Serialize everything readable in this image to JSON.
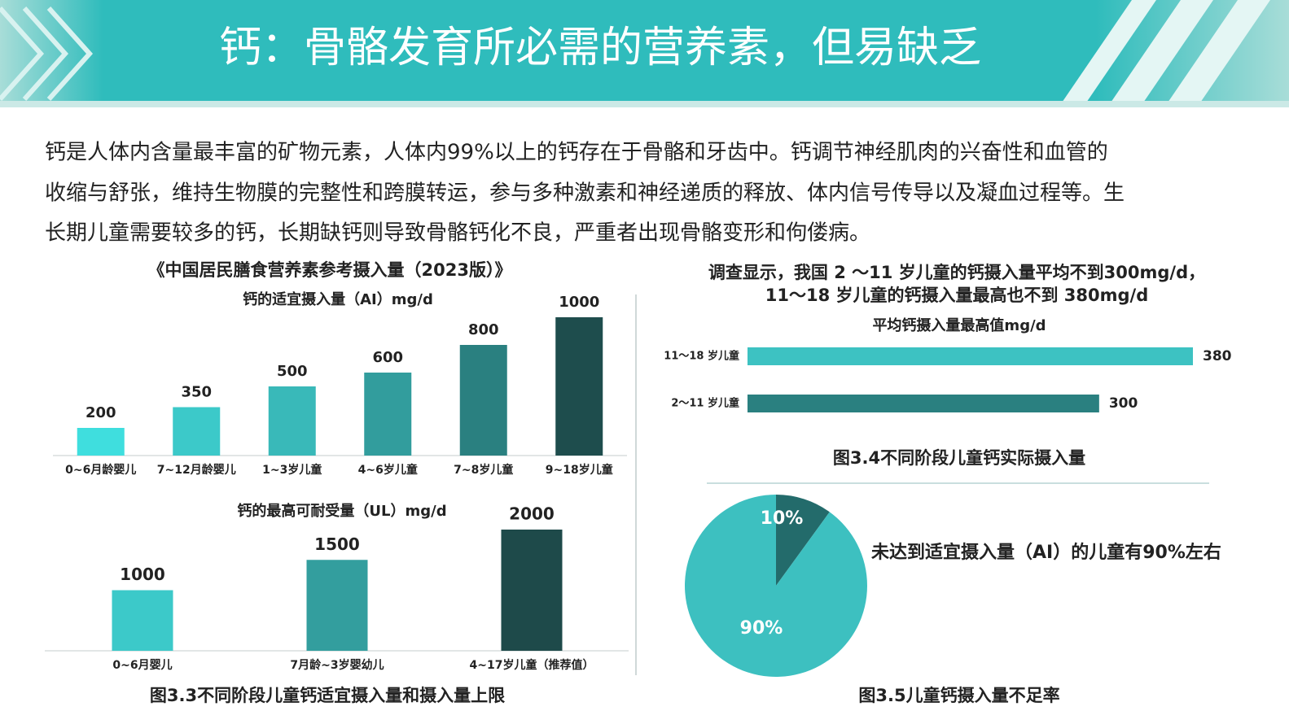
{
  "header": {
    "title": "钙：骨骼发育所必需的营养素，但易缺乏"
  },
  "intro": [
    "钙是人体内含量最丰富的矿物元素，人体内99%以上的钙存在于骨骼和牙齿中。钙调节神经肌肉的兴奋性和血管的",
    "收缩与舒张，维持生物膜的完整性和跨膜转运，参与多种激素和神经递质的释放、体内信号传导以及凝血过程等。生",
    "长期儿童需要较多的钙，长期缺钙则导致骨骼钙化不良，严重者出现骨骼变形和佝偻病。"
  ],
  "left_panel": {
    "title": "《中国居民膳食营养素参考摄入量（2023版）》",
    "caption": "图3.3不同阶段儿童钙适宜摄入量和摄入量上限"
  },
  "right_panel": {
    "title": [
      "调查显示，我国 2 ～11 岁儿童的钙摄入量平均不到300mg/d，",
      "11～18 岁儿童的钙摄入量最高也不到 380mg/d"
    ],
    "caption_top": "图3.4不同阶段儿童钙实际摄入量",
    "caption_bottom": "图3.5儿童钙摄入量不足率"
  },
  "chart_data": [
    {
      "type": "bar",
      "title": "钙的适宜摄入量（AI）mg/d",
      "categories": [
        "0~6月龄婴儿",
        "7~12月龄婴儿",
        "1~3岁儿童",
        "4~6岁儿童",
        "7~8岁儿童",
        "9~18岁儿童"
      ],
      "values": [
        200,
        350,
        500,
        600,
        800,
        1000
      ],
      "colors": [
        "#3fdede",
        "#3cc9c9",
        "#39b9b9",
        "#329d9d",
        "#2a8080",
        "#1e4d4d"
      ]
    },
    {
      "type": "bar",
      "title": "钙的最高可耐受量（UL）mg/d",
      "categories": [
        "0~6月婴儿",
        "7月龄~3岁婴幼儿",
        "4~17岁儿童（推荐值）"
      ],
      "values": [
        1000,
        1500,
        2000
      ],
      "colors": [
        "#3cc9c9",
        "#339e9e",
        "#1e4a4a"
      ]
    },
    {
      "type": "barh",
      "title": "平均钙摄入量最高值mg/d",
      "categories": [
        "11～18 岁儿童",
        "2～11 岁儿童"
      ],
      "values": [
        380,
        300
      ],
      "colors": [
        "#3dc2c2",
        "#2a8080"
      ]
    },
    {
      "type": "pie",
      "values": [
        10,
        90
      ],
      "value_labels": [
        "10%",
        "90%"
      ],
      "colors": [
        "#236b6b",
        "#3dc0c0"
      ],
      "annotation": "未达到适宜摄入量（AI）的儿童有90%左右"
    }
  ]
}
